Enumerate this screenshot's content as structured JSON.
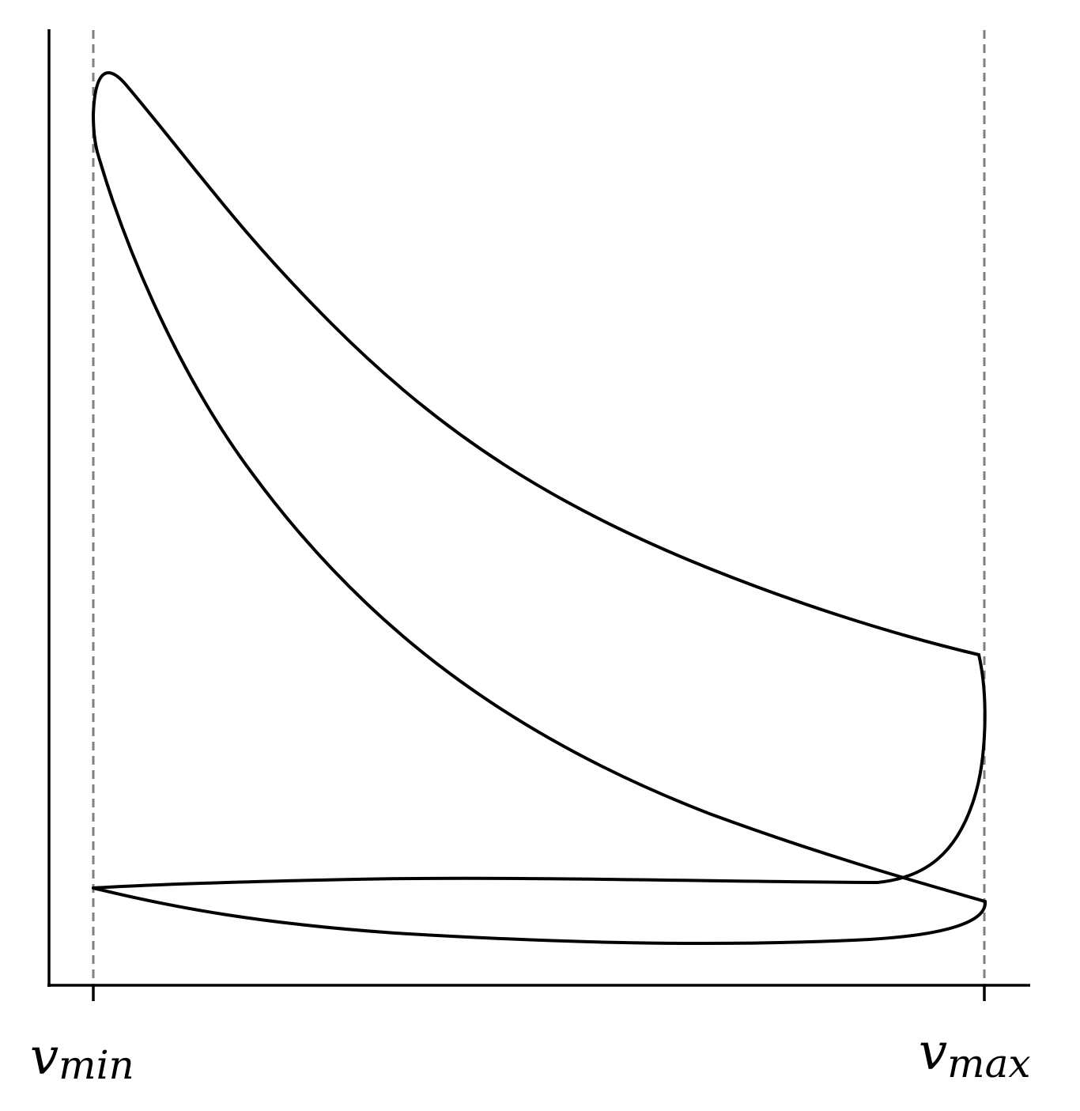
{
  "diagram": {
    "type": "pv-cycle",
    "description_kind": "engine cycle on pressure-volume axes",
    "axes": {
      "x": {
        "ticks": [
          {
            "id": "vmin",
            "main": "v",
            "sub": "min"
          },
          {
            "id": "vmax",
            "main": "v",
            "sub": "max"
          }
        ]
      }
    },
    "guides": [
      "v_min",
      "v_max"
    ],
    "colors": {
      "curve": "#000000",
      "axis": "#000000",
      "guide": "#7f7f7f",
      "background": "#ffffff"
    }
  }
}
